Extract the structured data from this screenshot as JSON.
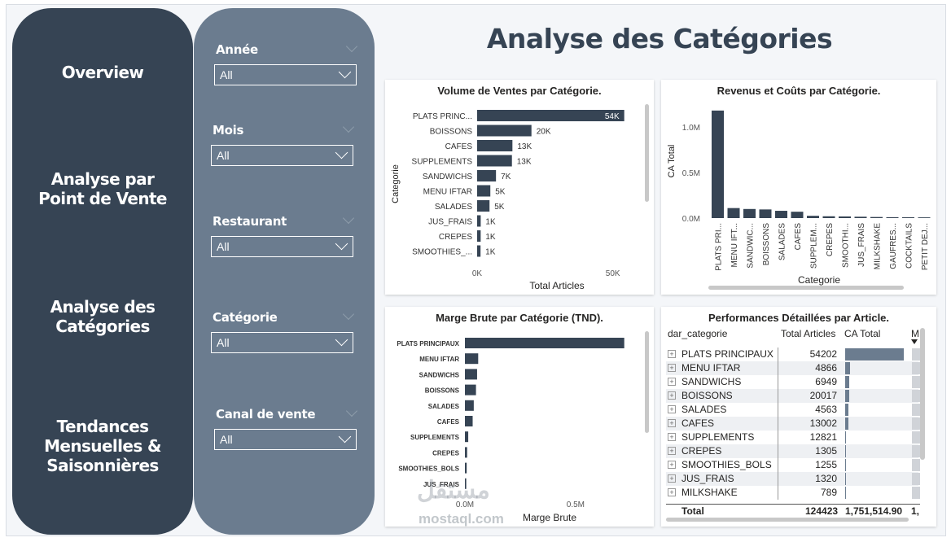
{
  "nav": {
    "overview": "Overview",
    "point_vente_1": "Analyse par",
    "point_vente_2": "Point de Vente",
    "categories_1": "Analyse des",
    "categories_2": "Catégories",
    "tendances_1": "Tendances",
    "tendances_2": "Mensuelles &",
    "tendances_3": "Saisonnières"
  },
  "filters": [
    {
      "label": "Année",
      "value": "All"
    },
    {
      "label": "Mois",
      "value": "All"
    },
    {
      "label": "Restaurant",
      "value": "All"
    },
    {
      "label": "Catégorie",
      "value": "All"
    },
    {
      "label": "Canal de vente",
      "value": "All"
    }
  ],
  "page_title": "Analyse des Catégories",
  "chart_data": [
    {
      "type": "bar",
      "orientation": "horizontal",
      "title": "Volume de Ventes par Catégorie.",
      "xlabel": "Total Articles",
      "ylabel": "Categorie",
      "categories": [
        "PLATS PRINC...",
        "BOISSONS",
        "CAFES",
        "SUPPLEMENTS",
        "SANDWICHS",
        "MENU IFTAR",
        "SALADES",
        "JUS_FRAIS",
        "CREPES",
        "SMOOTHIES_..."
      ],
      "values": [
        54202,
        20017,
        13002,
        12821,
        6949,
        4866,
        4563,
        1320,
        1305,
        1255
      ],
      "data_labels": [
        "54K",
        "20K",
        "13K",
        "13K",
        "7K",
        "5K",
        "5K",
        "1K",
        "1K",
        "1K"
      ],
      "x_ticks": [
        "0K",
        "50K"
      ],
      "xlim": [
        0,
        60000
      ]
    },
    {
      "type": "bar",
      "orientation": "vertical",
      "title": "Revenus et Coûts par Catégorie.",
      "xlabel": "Categorie",
      "ylabel": "CA Total",
      "categories": [
        "PLATS PRI...",
        "MENU IFT...",
        "SANDWIC...",
        "BOISSONS",
        "SALADES",
        "CAFES",
        "SUPPLEM...",
        "CREPES",
        "SMOOTHI...",
        "JUS_FRAIS",
        "MILKSHAKE",
        "GAUFRES...",
        "COCKTAILS",
        "PETIT DEJ..."
      ],
      "values": [
        1180000,
        110000,
        100000,
        95000,
        80000,
        70000,
        25000,
        20000,
        18000,
        15000,
        12000,
        10000,
        9000,
        8000
      ],
      "y_ticks": [
        "0.0M",
        "0.5M",
        "1.0M"
      ],
      "ylim": [
        0,
        1250000
      ]
    },
    {
      "type": "bar",
      "orientation": "horizontal",
      "title": "Marge Brute par Catégorie (TND).",
      "xlabel": "Marge Brute",
      "categories": [
        "PLATS PRINCIPAUX",
        "MENU IFTAR",
        "SANDWICHS",
        "BOISSONS",
        "SALADES",
        "CAFES",
        "SUPPLEMENTS",
        "CREPES",
        "SMOOTHIES_BOLS",
        "JUS_FRAIS"
      ],
      "values": [
        720000,
        60000,
        55000,
        50000,
        40000,
        35000,
        15000,
        10000,
        8000,
        6000
      ],
      "x_ticks": [
        "0.0M",
        "0.5M"
      ],
      "xlim": [
        0,
        780000
      ]
    }
  ],
  "table": {
    "title": "Performances Détaillées par Article.",
    "headers": [
      "dar_categorie",
      "Total Articles",
      "CA Total",
      "M"
    ],
    "rows": [
      {
        "name": "PLATS PRINCIPAUX",
        "total": "54202",
        "ca": 1.0
      },
      {
        "name": "MENU IFTAR",
        "total": "4866",
        "ca": 0.08
      },
      {
        "name": "SANDWICHS",
        "total": "6949",
        "ca": 0.075
      },
      {
        "name": "BOISSONS",
        "total": "20017",
        "ca": 0.075
      },
      {
        "name": "SALADES",
        "total": "4563",
        "ca": 0.06
      },
      {
        "name": "CAFES",
        "total": "13002",
        "ca": 0.055
      },
      {
        "name": "SUPPLEMENTS",
        "total": "12821",
        "ca": 0.02
      },
      {
        "name": "CREPES",
        "total": "1305",
        "ca": 0.015
      },
      {
        "name": "SMOOTHIES_BOLS",
        "total": "1255",
        "ca": 0.014
      },
      {
        "name": "JUS_FRAIS",
        "total": "1320",
        "ca": 0.012
      },
      {
        "name": "MILKSHAKE",
        "total": "789",
        "ca": 0.01
      }
    ],
    "total_label": "Total",
    "total_articles": "124423",
    "total_ca": "1,751,514.90",
    "total_m": "1,"
  },
  "watermark": {
    "arabic": "مستقل",
    "latin": "mostaql.com"
  },
  "colors": {
    "nav": "#364454",
    "filters": "#6b7c8f",
    "bar": "#364454",
    "ca_bar": "#6b7c8f"
  }
}
